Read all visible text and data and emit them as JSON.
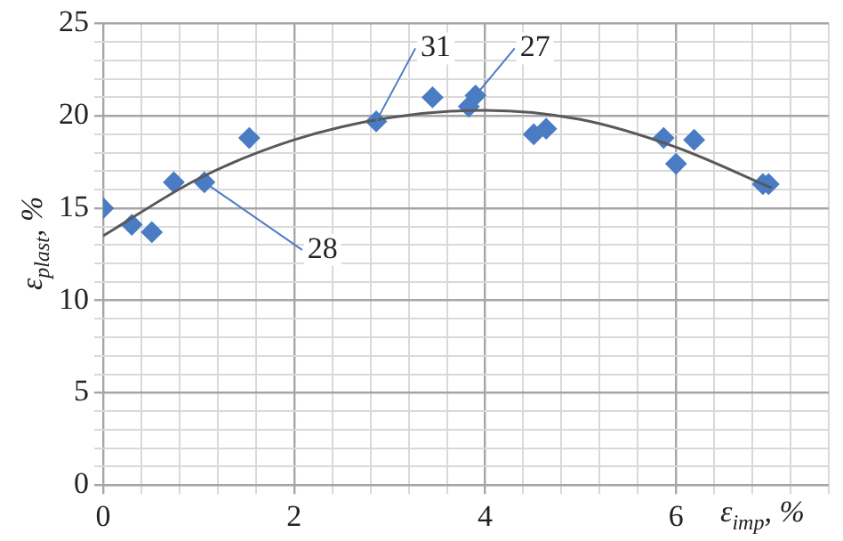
{
  "chart_data": {
    "type": "scatter",
    "xlabel": "ε$_{imp}$, %",
    "ylabel": "ε$_{plast}$, %",
    "xlim": [
      0,
      7.6
    ],
    "ylim": [
      0,
      25
    ],
    "xticks": [
      0,
      {
        "value": 0.4,
        "label": null
      },
      {
        "value": 0.8,
        "label": null
      },
      {
        "value": 1.2,
        "label": null
      },
      {
        "value": 1.6,
        "label": null
      },
      2,
      {
        "value": 2.4,
        "label": null
      },
      {
        "value": 2.8,
        "label": null
      },
      {
        "value": 3.2,
        "label": null
      },
      {
        "value": 3.6,
        "label": null
      },
      4,
      {
        "value": 4.4,
        "label": null
      },
      {
        "value": 4.8,
        "label": null
      },
      {
        "value": 5.2,
        "label": null
      },
      {
        "value": 5.6,
        "label": null
      },
      6,
      {
        "value": 6.4,
        "label": null
      },
      {
        "value": 6.8,
        "label": null
      },
      {
        "value": 7.2,
        "label": null
      },
      {
        "value": 7.6,
        "label": null
      }
    ],
    "yticks": [
      0,
      {
        "value": 1,
        "label": null
      },
      {
        "value": 2,
        "label": null
      },
      {
        "value": 3,
        "label": null
      },
      {
        "value": 4,
        "label": null
      },
      5,
      {
        "value": 6,
        "label": null
      },
      {
        "value": 7,
        "label": null
      },
      {
        "value": 8,
        "label": null
      },
      {
        "value": 9,
        "label": null
      },
      10,
      {
        "value": 11,
        "label": null
      },
      {
        "value": 12,
        "label": null
      },
      {
        "value": 13,
        "label": null
      },
      {
        "value": 14,
        "label": null
      },
      15,
      {
        "value": 16,
        "label": null
      },
      {
        "value": 17,
        "label": null
      },
      {
        "value": 18,
        "label": null
      },
      {
        "value": 19,
        "label": null
      },
      20,
      {
        "value": 21,
        "label": null
      },
      {
        "value": 22,
        "label": null
      },
      {
        "value": 23,
        "label": null
      },
      {
        "value": 24,
        "label": null
      },
      25
    ],
    "grid": true,
    "legend": false,
    "marker": "diamond",
    "series": [
      {
        "type": "scatter",
        "color": "#4a7cc4",
        "x": [
          0,
          0.3,
          0.51,
          0.74,
          1.06,
          1.53,
          2.86,
          3.45,
          3.83,
          3.9,
          4.51,
          4.64,
          5.87,
          6.0,
          6.19,
          6.91,
          6.97
        ],
        "values": [
          15.0,
          14.1,
          13.7,
          16.4,
          16.4,
          18.8,
          19.7,
          21.0,
          20.5,
          21.1,
          19.0,
          19.3,
          18.8,
          17.4,
          18.7,
          16.3,
          16.3
        ]
      },
      {
        "type": "line",
        "color": "#595959",
        "marker": "none",
        "x": [
          0,
          1,
          2,
          3,
          4,
          5,
          6,
          7
        ],
        "values": [
          13.5,
          16.6,
          18.7,
          19.9,
          20.3,
          19.8,
          18.3,
          16.1
        ]
      }
    ],
    "annotations": [
      {
        "text": "31",
        "x": 2.86,
        "y": 19.7
      },
      {
        "text": "27",
        "x": 3.9,
        "y": 21.1
      },
      {
        "text": "28",
        "x": 1.06,
        "y": 16.4
      }
    ]
  }
}
